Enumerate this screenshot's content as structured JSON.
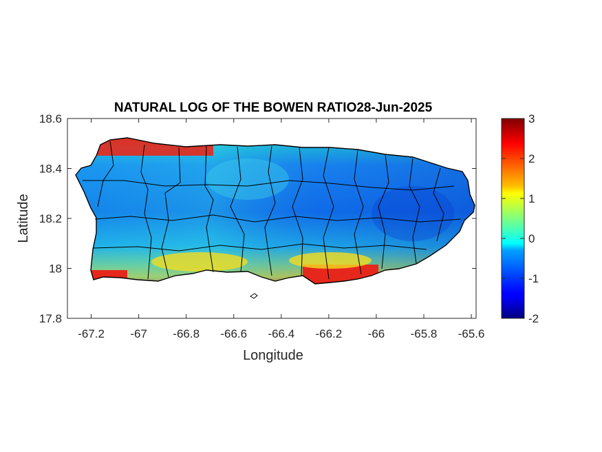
{
  "chart_data": {
    "type": "heatmap",
    "title": "NATURAL LOG OF THE BOWEN RATIO28-Jun-2025",
    "xlabel": "Longitude",
    "ylabel": "Latitude",
    "xlim": [
      -67.3,
      -65.58
    ],
    "ylim": [
      17.8,
      18.6
    ],
    "xticks": [
      "-67.2",
      "-67",
      "-66.8",
      "-66.6",
      "-66.4",
      "-66.2",
      "-66",
      "-65.8",
      "-65.6"
    ],
    "yticks": [
      "17.8",
      "18",
      "18.2",
      "18.4",
      "18.6"
    ],
    "colorbar": {
      "colormap": "jet",
      "limits": [
        -2,
        3
      ],
      "ticks": [
        "-2",
        "-1",
        "0",
        "1",
        "2",
        "3"
      ]
    },
    "region": "Puerto Rico",
    "boundary_color": "#000000"
  }
}
